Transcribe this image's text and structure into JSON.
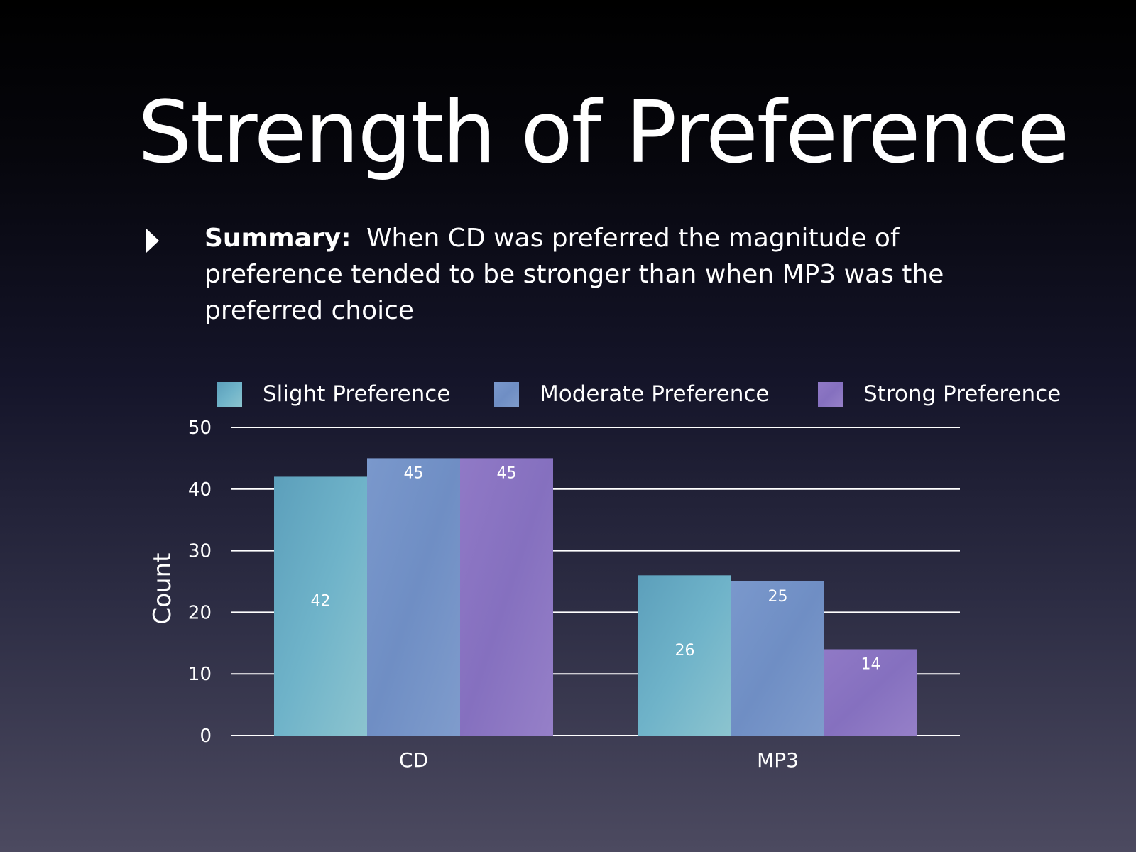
{
  "slide": {
    "title": "Strength of Preference",
    "bullet_lead": "Summary:",
    "bullet_text": "When CD was preferred the magnitude of preference tended to be stronger than when MP3 was the preferred choice"
  },
  "chart_data": {
    "type": "bar",
    "categories": [
      "CD",
      "MP3"
    ],
    "series": [
      {
        "name": "Slight Preference",
        "values": [
          42,
          26
        ],
        "color": "#5fa3bd"
      },
      {
        "name": "Moderate Preference",
        "values": [
          45,
          25
        ],
        "color": "#7893c8"
      },
      {
        "name": "Strong Preference",
        "values": [
          45,
          14
        ],
        "color": "#8a76c3"
      }
    ],
    "ylabel": "Count",
    "xlabel": "",
    "ylim": [
      0,
      50
    ],
    "yticks": [
      0,
      10,
      20,
      30,
      40,
      50
    ],
    "grid": true,
    "legend_position": "top"
  }
}
